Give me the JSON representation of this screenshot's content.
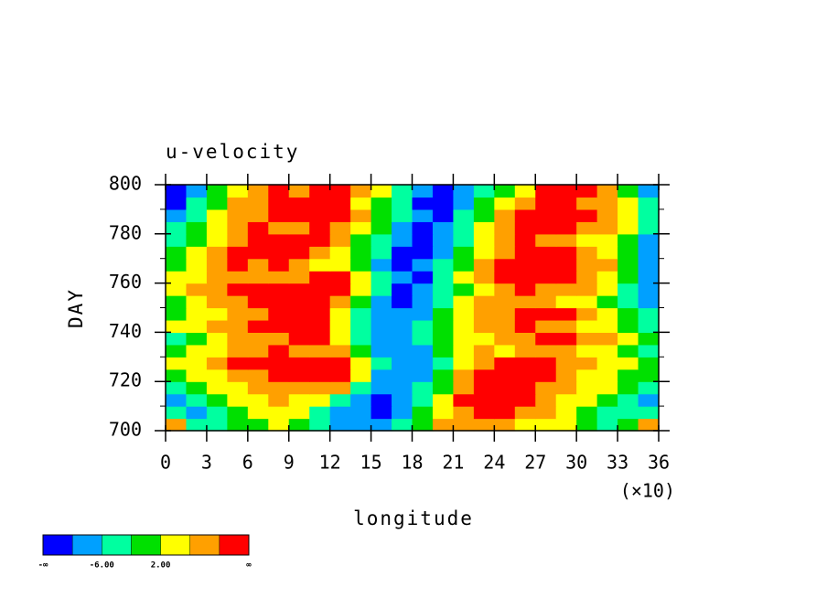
{
  "chart_data": {
    "type": "contour",
    "title": "u-velocity",
    "xlabel": "longitude",
    "ylabel": "DAY",
    "x_multiplier": "(×10)",
    "xlim": [
      0,
      360
    ],
    "ylim": [
      700,
      800
    ],
    "xticks": [
      {
        "value": 0,
        "label": "0"
      },
      {
        "value": 30,
        "label": "3"
      },
      {
        "value": 60,
        "label": "6"
      },
      {
        "value": 90,
        "label": "9"
      },
      {
        "value": 120,
        "label": "12"
      },
      {
        "value": 150,
        "label": "15"
      },
      {
        "value": 180,
        "label": "18"
      },
      {
        "value": 210,
        "label": "21"
      },
      {
        "value": 240,
        "label": "24"
      },
      {
        "value": 270,
        "label": "27"
      },
      {
        "value": 300,
        "label": "30"
      },
      {
        "value": 330,
        "label": "33"
      },
      {
        "value": 360,
        "label": "36"
      }
    ],
    "yticks": [
      700,
      720,
      740,
      760,
      780,
      800
    ],
    "xbins": [
      0,
      15,
      30,
      45,
      60,
      75,
      90,
      105,
      120,
      135,
      150,
      165,
      180,
      195,
      210,
      225,
      240,
      255,
      270,
      285,
      300,
      315,
      330,
      345,
      360
    ],
    "ybins": [
      700,
      705,
      710,
      715,
      720,
      725,
      730,
      735,
      740,
      745,
      750,
      755,
      760,
      765,
      770,
      775,
      780,
      785,
      790,
      795,
      800
    ],
    "z": [
      [
        6,
        -4,
        -6,
        -2,
        0,
        2,
        -2,
        -6,
        -10,
        -10,
        -8,
        -6,
        0,
        6,
        6,
        8,
        6,
        4,
        4,
        2,
        -2,
        -6,
        -2,
        8
      ],
      [
        -6,
        -8,
        -4,
        0,
        2,
        4,
        2,
        -4,
        -8,
        -10,
        -12,
        -8,
        -2,
        4,
        8,
        12,
        10,
        8,
        6,
        2,
        0,
        -4,
        -6,
        -4
      ],
      [
        -8,
        -6,
        -2,
        2,
        4,
        6,
        4,
        2,
        -4,
        -10,
        -12,
        -10,
        -4,
        2,
        10,
        14,
        12,
        10,
        8,
        4,
        2,
        -2,
        -6,
        -8
      ],
      [
        -6,
        -2,
        2,
        4,
        6,
        8,
        8,
        8,
        6,
        -4,
        -10,
        -10,
        -6,
        0,
        8,
        14,
        14,
        12,
        8,
        6,
        4,
        2,
        -2,
        -6
      ],
      [
        0,
        2,
        4,
        6,
        8,
        10,
        10,
        12,
        10,
        2,
        -8,
        -10,
        -8,
        -2,
        6,
        12,
        14,
        14,
        10,
        6,
        4,
        2,
        0,
        -2
      ],
      [
        2,
        4,
        6,
        10,
        12,
        12,
        10,
        12,
        12,
        4,
        -6,
        -10,
        -8,
        -4,
        2,
        8,
        12,
        14,
        10,
        8,
        6,
        4,
        2,
        0
      ],
      [
        -2,
        2,
        4,
        6,
        8,
        10,
        8,
        8,
        6,
        0,
        -8,
        -10,
        -8,
        -2,
        2,
        6,
        4,
        6,
        8,
        6,
        4,
        2,
        0,
        -4
      ],
      [
        -4,
        0,
        2,
        6,
        8,
        8,
        14,
        10,
        2,
        -4,
        -8,
        -8,
        -4,
        0,
        2,
        4,
        6,
        8,
        10,
        10,
        8,
        6,
        4,
        0
      ],
      [
        2,
        4,
        6,
        8,
        10,
        12,
        14,
        12,
        4,
        -4,
        -10,
        -8,
        -6,
        0,
        4,
        6,
        8,
        10,
        8,
        6,
        4,
        2,
        0,
        -4
      ],
      [
        -2,
        2,
        4,
        8,
        8,
        10,
        14,
        10,
        4,
        -4,
        -10,
        -10,
        -8,
        -2,
        4,
        6,
        8,
        12,
        14,
        12,
        8,
        4,
        -2,
        -6
      ],
      [
        0,
        4,
        6,
        8,
        10,
        12,
        12,
        12,
        6,
        -2,
        -8,
        -12,
        -10,
        -4,
        2,
        6,
        6,
        8,
        6,
        4,
        2,
        0,
        -4,
        -8
      ],
      [
        4,
        6,
        8,
        10,
        12,
        12,
        14,
        14,
        10,
        2,
        -6,
        -12,
        -10,
        -6,
        0,
        4,
        8,
        10,
        8,
        6,
        6,
        2,
        -4,
        -10
      ],
      [
        2,
        4,
        8,
        6,
        6,
        8,
        8,
        12,
        10,
        2,
        -4,
        -10,
        -12,
        -6,
        2,
        8,
        12,
        14,
        12,
        10,
        6,
        4,
        -2,
        -8
      ],
      [
        0,
        4,
        6,
        10,
        8,
        10,
        6,
        4,
        2,
        -2,
        -8,
        -12,
        -10,
        -6,
        0,
        6,
        12,
        14,
        14,
        12,
        8,
        6,
        -2,
        -10
      ],
      [
        -2,
        2,
        6,
        10,
        14,
        14,
        14,
        8,
        4,
        0,
        -6,
        -12,
        -12,
        -8,
        -2,
        4,
        8,
        12,
        14,
        12,
        6,
        2,
        0,
        -10
      ],
      [
        -4,
        0,
        4,
        8,
        10,
        14,
        12,
        10,
        6,
        0,
        -4,
        -10,
        -12,
        -8,
        -4,
        4,
        8,
        10,
        8,
        6,
        4,
        4,
        -2,
        -8
      ],
      [
        -6,
        -2,
        4,
        6,
        10,
        8,
        8,
        10,
        8,
        4,
        -2,
        -8,
        -12,
        -10,
        -4,
        2,
        8,
        14,
        14,
        12,
        8,
        6,
        2,
        -4
      ],
      [
        -8,
        -4,
        2,
        6,
        8,
        12,
        14,
        14,
        12,
        6,
        0,
        -4,
        -10,
        -12,
        -6,
        0,
        6,
        12,
        14,
        14,
        12,
        8,
        4,
        -4
      ],
      [
        -12,
        -6,
        0,
        6,
        8,
        10,
        14,
        12,
        10,
        4,
        0,
        -6,
        -12,
        -12,
        -8,
        -2,
        4,
        8,
        10,
        12,
        8,
        6,
        2,
        -6
      ],
      [
        -12,
        -8,
        -2,
        4,
        8,
        12,
        8,
        12,
        14,
        8,
        2,
        -4,
        -10,
        -12,
        -8,
        -4,
        0,
        4,
        12,
        14,
        12,
        6,
        0,
        -8
      ]
    ],
    "colorbar": {
      "colors": [
        "#0000ff",
        "#00a0ff",
        "#00ffa0",
        "#00e000",
        "#ffff00",
        "#ffa000",
        "#ff0000"
      ],
      "levels": [
        -10,
        -6,
        -2,
        2,
        6,
        10
      ],
      "labels": [
        {
          "value": -6,
          "label": "-6.00"
        },
        {
          "value": 2,
          "label": "2.00"
        }
      ],
      "end_labels": [
        "-∞",
        "∞"
      ]
    }
  }
}
